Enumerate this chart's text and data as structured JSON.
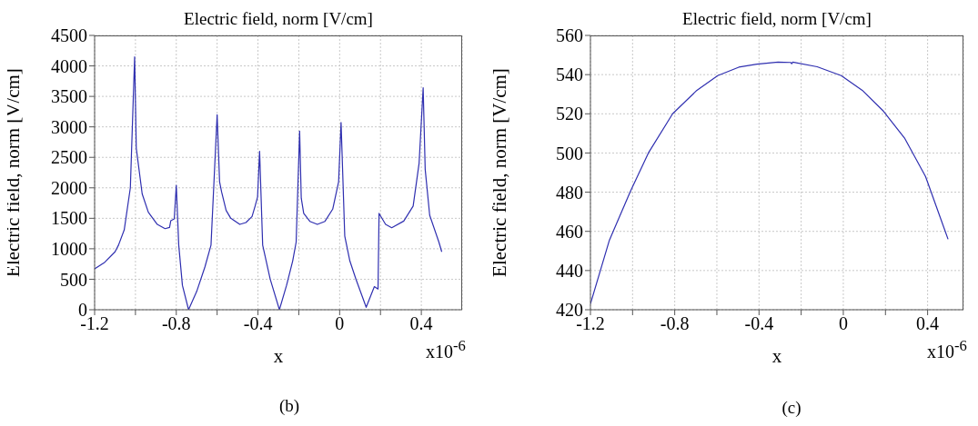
{
  "chart_data": [
    {
      "type": "line",
      "title": "Electric field, norm [V/cm]",
      "xlabel": "x",
      "ylabel": "Electric field, norm [V/cm]",
      "color": "#2f2fb0",
      "grid": true,
      "xlim": [
        -1.2,
        0.6
      ],
      "xticks": [
        -1.2,
        {
          "value": -1,
          "label": null
        },
        -0.8,
        {
          "value": -0.6,
          "label": null
        },
        -0.4,
        {
          "value": -0.2,
          "label": null
        },
        0,
        {
          "value": 0.2,
          "label": null
        },
        0.4
      ],
      "ylim": [
        0,
        4500
      ],
      "yticks": [
        0,
        500,
        1000,
        1500,
        2000,
        2500,
        3000,
        3500,
        4000,
        4500
      ],
      "annotations": [
        "x10$^{-6}$",
        "(b)"
      ],
      "x": [
        -1.2,
        -1.15,
        -1.1,
        -1.083,
        -1.055,
        -1.025,
        -1.004,
        -0.996,
        -0.967,
        -0.937,
        -0.893,
        -0.855,
        -0.833,
        -0.827,
        -0.81,
        -0.8,
        -0.788,
        -0.77,
        -0.74,
        -0.7,
        -0.66,
        -0.63,
        -0.6,
        -0.588,
        -0.578,
        -0.556,
        -0.533,
        -0.489,
        -0.459,
        -0.429,
        -0.414,
        -0.402,
        -0.392,
        -0.377,
        -0.34,
        -0.295,
        -0.26,
        -0.23,
        -0.213,
        -0.196,
        -0.188,
        -0.176,
        -0.146,
        -0.109,
        -0.072,
        -0.034,
        -0.005,
        0.007,
        0.025,
        0.05,
        0.08,
        0.13,
        0.17,
        0.188,
        0.193,
        0.225,
        0.255,
        0.314,
        0.36,
        0.389,
        0.409,
        0.419,
        0.441,
        0.486,
        0.5
      ],
      "values": [
        670,
        780,
        950,
        1060,
        1310,
        2000,
        4150,
        2650,
        1900,
        1600,
        1400,
        1330,
        1350,
        1460,
        1490,
        2040,
        1060,
        400,
        0,
        300,
        700,
        1060,
        3200,
        2100,
        1930,
        1630,
        1500,
        1400,
        1430,
        1530,
        1700,
        1850,
        2600,
        1060,
        500,
        0,
        400,
        800,
        1110,
        2930,
        1830,
        1580,
        1450,
        1400,
        1450,
        1650,
        2100,
        3070,
        1210,
        800,
        500,
        40,
        380,
        340,
        1580,
        1400,
        1345,
        1455,
        1700,
        2400,
        3640,
        2300,
        1550,
        1110,
        950
      ]
    },
    {
      "type": "line",
      "title": "Electric field, norm [V/cm]",
      "xlabel": "x",
      "ylabel": "Electric field, norm [V/cm]",
      "color": "#2f2fb0",
      "grid": true,
      "xlim": [
        -1.2,
        0.57
      ],
      "xticks": [
        -1.2,
        {
          "value": -1,
          "label": null
        },
        -0.8,
        {
          "value": -0.6,
          "label": null
        },
        -0.4,
        {
          "value": -0.2,
          "label": null
        },
        0,
        {
          "value": 0.2,
          "label": null
        },
        0.4
      ],
      "ylim": [
        420,
        560
      ],
      "yticks": [
        420,
        440,
        460,
        480,
        500,
        520,
        540,
        560
      ],
      "annotations": [
        "x10$^{-6}$",
        "(c)"
      ],
      "x": [
        -1.2,
        -1.11,
        -1.01,
        -0.925,
        -0.81,
        -0.695,
        -0.596,
        -0.496,
        -0.41,
        -0.31,
        -0.25,
        -0.245,
        -0.24,
        -0.124,
        -0.01,
        0.09,
        0.19,
        0.29,
        0.39,
        0.497
      ],
      "values": [
        423,
        455.5,
        480.5,
        500,
        520,
        532,
        539.5,
        543.8,
        545.3,
        546.4,
        546.2,
        545.6,
        546.4,
        544,
        539.5,
        532,
        521.4,
        507.7,
        488,
        456
      ]
    }
  ]
}
